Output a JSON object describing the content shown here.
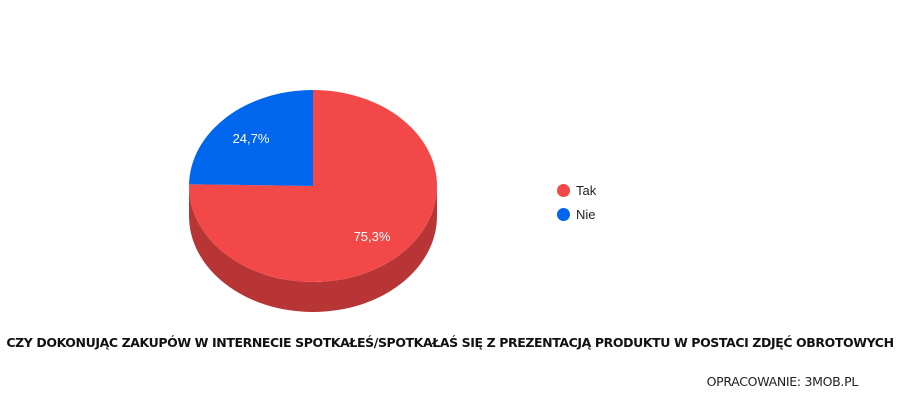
{
  "chart_data": {
    "type": "pie",
    "style": "3d",
    "title": "CZY DOKONUJĄC ZAKUPÓW W INTERNECIE SPOTKAŁEŚ/SPOTKAŁAŚ SIĘ Z PREZENTACJĄ PRODUKTU W POSTACI ZDJĘĆ OBROTOWYCH",
    "categories": [
      "Tak",
      "Nie"
    ],
    "values": [
      75.3,
      24.7
    ],
    "data_labels": [
      "75,3%",
      "24,7%"
    ],
    "colors": [
      "#f24848",
      "#0066ee"
    ],
    "side_colors": [
      "#b73535",
      "#004db3"
    ],
    "legend_position": "right",
    "source": "OPRACOWANIE: 3MOB.PL"
  },
  "legend": {
    "items": [
      {
        "label": "Tak",
        "color": "#f24848"
      },
      {
        "label": "Nie",
        "color": "#0066ee"
      }
    ]
  },
  "footer": {
    "title": "CZY DOKONUJĄC ZAKUPÓW W INTERNECIE SPOTKAŁEŚ/SPOTKAŁAŚ SIĘ Z PREZENTACJĄ PRODUKTU W POSTACI ZDJĘĆ OBROTOWYCH",
    "source": "OPRACOWANIE: 3MOB.PL"
  }
}
